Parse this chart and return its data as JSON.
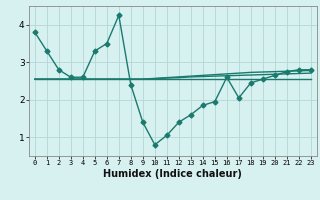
{
  "x": [
    0,
    1,
    2,
    3,
    4,
    5,
    6,
    7,
    8,
    9,
    10,
    11,
    12,
    13,
    14,
    15,
    16,
    17,
    18,
    19,
    20,
    21,
    22,
    23
  ],
  "main_line": [
    3.8,
    3.3,
    2.8,
    2.6,
    2.6,
    3.3,
    3.5,
    4.25,
    2.4,
    1.4,
    0.8,
    1.05,
    1.4,
    1.6,
    1.85,
    1.95,
    2.6,
    2.05,
    2.45,
    2.55,
    2.65,
    2.75,
    2.8,
    2.8
  ],
  "flat_line1": [
    2.55,
    2.55,
    2.55,
    2.55,
    2.55,
    2.55,
    2.55,
    2.55,
    2.55,
    2.55,
    2.57,
    2.59,
    2.61,
    2.63,
    2.65,
    2.67,
    2.69,
    2.71,
    2.73,
    2.74,
    2.75,
    2.76,
    2.77,
    2.78
  ],
  "flat_line2": [
    2.55,
    2.55,
    2.55,
    2.55,
    2.55,
    2.55,
    2.55,
    2.55,
    2.55,
    2.55,
    2.56,
    2.58,
    2.59,
    2.61,
    2.62,
    2.63,
    2.64,
    2.65,
    2.66,
    2.67,
    2.68,
    2.69,
    2.7,
    2.71
  ],
  "flat_line3": [
    2.55,
    2.55,
    2.55,
    2.55,
    2.55,
    2.55,
    2.55,
    2.55,
    2.55,
    2.55,
    2.55,
    2.55,
    2.55,
    2.55,
    2.55,
    2.55,
    2.55,
    2.55,
    2.55,
    2.55,
    2.55,
    2.55,
    2.55,
    2.55
  ],
  "color_main": "#1a7a6e",
  "color_flat": "#1a7a6e",
  "bg_color": "#d7f0f0",
  "grid_color": "#b8dada",
  "xlim": [
    -0.5,
    23.5
  ],
  "ylim": [
    0.5,
    4.5
  ],
  "yticks": [
    1,
    2,
    3,
    4
  ],
  "xticks": [
    0,
    1,
    2,
    3,
    4,
    5,
    6,
    7,
    8,
    9,
    10,
    11,
    12,
    13,
    14,
    15,
    16,
    17,
    18,
    19,
    20,
    21,
    22,
    23
  ],
  "xlabel": "Humidex (Indice chaleur)",
  "xlabel_fontsize": 7,
  "xtick_fontsize": 5,
  "ytick_fontsize": 6.5,
  "marker": "D",
  "markersize": 2.5,
  "linewidth": 1.0
}
